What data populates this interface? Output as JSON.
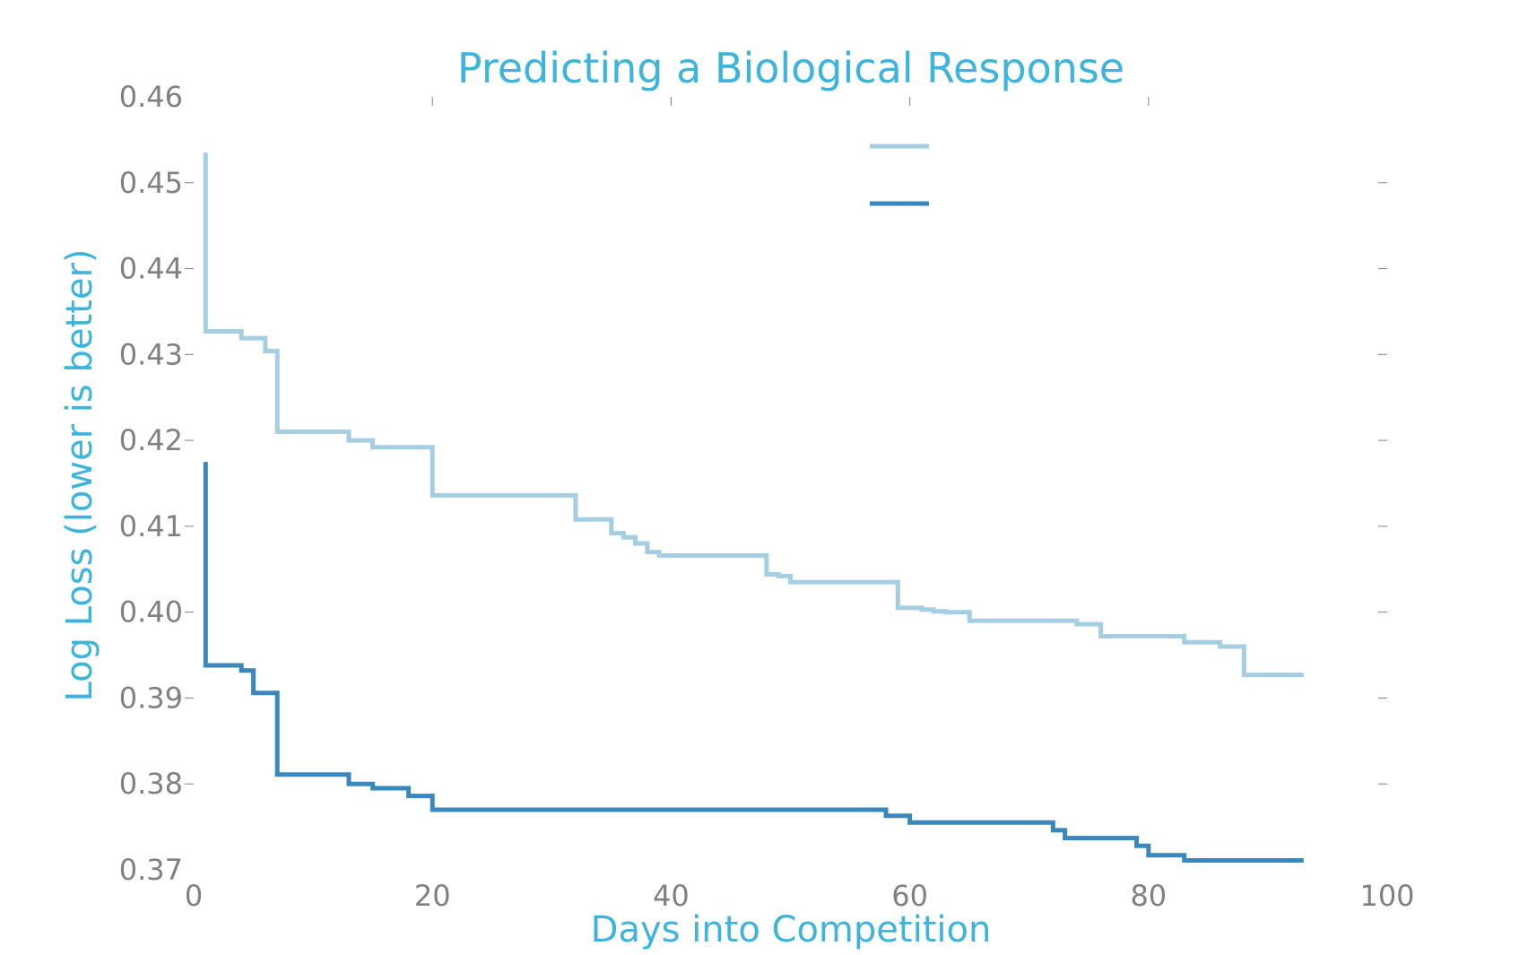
{
  "chart_data": {
    "type": "line",
    "title": "Predicting a Biological Response",
    "xlabel": "Days into Competition",
    "ylabel": "Log Loss (lower is better)",
    "xlim": [
      0,
      100
    ],
    "ylim": [
      0.37,
      0.46
    ],
    "xticks": [
      "0",
      "20",
      "40",
      "60",
      "80",
      "100"
    ],
    "yticks": [
      "0.37",
      "0.38",
      "0.39",
      "0.40",
      "0.41",
      "0.42",
      "0.43",
      "0.44",
      "0.45",
      "0.46"
    ],
    "grid": false,
    "legend_position": "upper-center",
    "line_style": "step",
    "series": [
      {
        "color": "#a6cee3",
        "points": [
          [
            1,
            0.4535
          ],
          [
            1,
            0.4327
          ],
          [
            4,
            0.4319
          ],
          [
            6,
            0.4304
          ],
          [
            7,
            0.421
          ],
          [
            13,
            0.42
          ],
          [
            15,
            0.4192
          ],
          [
            20,
            0.4136
          ],
          [
            32,
            0.4108
          ],
          [
            35,
            0.4092
          ],
          [
            36,
            0.4087
          ],
          [
            37,
            0.408
          ],
          [
            38,
            0.407
          ],
          [
            39,
            0.4066
          ],
          [
            48,
            0.4044
          ],
          [
            49,
            0.4042
          ],
          [
            50,
            0.4035
          ],
          [
            59,
            0.4005
          ],
          [
            61,
            0.4003
          ],
          [
            62,
            0.4001
          ],
          [
            63,
            0.4
          ],
          [
            65,
            0.399
          ],
          [
            74,
            0.3986
          ],
          [
            76,
            0.3972
          ],
          [
            83,
            0.3965
          ],
          [
            86,
            0.396
          ],
          [
            88,
            0.3927
          ],
          [
            93,
            0.3927
          ]
        ]
      },
      {
        "color": "#3a87bd",
        "points": [
          [
            1,
            0.4175
          ],
          [
            1,
            0.3938
          ],
          [
            4,
            0.3932
          ],
          [
            5,
            0.3906
          ],
          [
            7,
            0.3811
          ],
          [
            13,
            0.38
          ],
          [
            15,
            0.3795
          ],
          [
            18,
            0.3786
          ],
          [
            20,
            0.377
          ],
          [
            58,
            0.3763
          ],
          [
            60,
            0.3755
          ],
          [
            72,
            0.3746
          ],
          [
            73,
            0.3737
          ],
          [
            79,
            0.3728
          ],
          [
            80,
            0.3717
          ],
          [
            83,
            0.3711
          ],
          [
            93,
            0.3711
          ]
        ]
      }
    ]
  }
}
